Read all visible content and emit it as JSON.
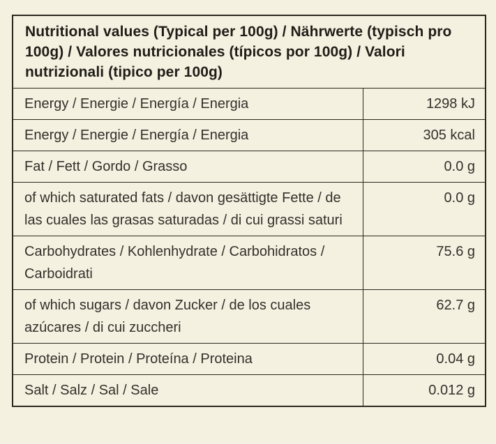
{
  "colors": {
    "background": "#f5f1e1",
    "border": "#2a271d",
    "text": "#33302a",
    "header_text": "#1f1d17"
  },
  "table": {
    "title": "Nutritional values (Typical per 100g) / Nährwerte (typisch pro 100g) / Valores nutricionales (típicos por 100g) / Valori nutrizionali (tipico per 100g)",
    "rows": [
      {
        "label": "Energy / Energie / Energía / Energia",
        "value": "1298 kJ"
      },
      {
        "label": "Energy / Energie / Energía / Energia",
        "value": "305 kcal"
      },
      {
        "label": "Fat / Fett / Gordo / Grasso",
        "value": "0.0 g"
      },
      {
        "label": "of which saturated fats / davon gesättigte Fette / de las cuales las grasas saturadas / di cui grassi saturi",
        "value": "0.0 g"
      },
      {
        "label": "Carbohydrates / Kohlenhydrate / Carbohidratos / Carboidrati",
        "value": "75.6 g"
      },
      {
        "label": "of which sugars / davon Zucker / de los cuales azúcares / di cui zuccheri",
        "value": "62.7 g"
      },
      {
        "label": "Protein / Protein / Proteína / Proteina",
        "value": "0.04 g"
      },
      {
        "label": "Salt / Salz / Sal / Sale",
        "value": "0.012 g"
      }
    ]
  }
}
